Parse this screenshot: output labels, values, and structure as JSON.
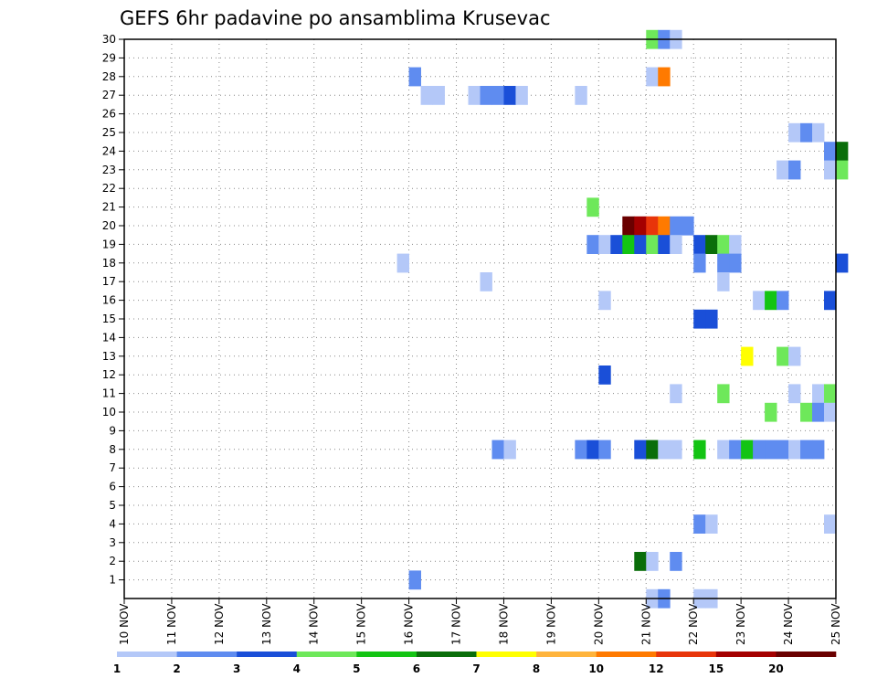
{
  "chart_data": {
    "type": "heatmap",
    "title": "GEFS 6hr padavine po ansamblima Krusevac",
    "xlabel": "",
    "ylabel": "",
    "x_tick_labels": [
      "10 NOV",
      "11 NOV",
      "12 NOV",
      "13 NOV",
      "14 NOV",
      "15 NOV",
      "16 NOV",
      "17 NOV",
      "18 NOV",
      "19 NOV",
      "20 NOV",
      "21 NOV",
      "22 NOV",
      "23 NOV",
      "24 NOV",
      "25 NOV"
    ],
    "y_tick_labels": [
      "1",
      "2",
      "3",
      "4",
      "5",
      "6",
      "7",
      "8",
      "9",
      "10",
      "11",
      "12",
      "13",
      "14",
      "15",
      "16",
      "17",
      "18",
      "19",
      "20",
      "21",
      "22",
      "23",
      "24",
      "25",
      "26",
      "27",
      "28",
      "29",
      "30"
    ],
    "x_range_days": [
      10,
      25
    ],
    "steps_per_day": 4,
    "members": 30,
    "grid": true,
    "legend_placement": "bottom",
    "legend": {
      "labels": [
        "1",
        "2",
        "3",
        "4",
        "5",
        "6",
        "7",
        "8",
        "10",
        "12",
        "15",
        "20"
      ],
      "colors": [
        "#b4c8f8",
        "#5f8cf0",
        "#1a4fd8",
        "#6ee85a",
        "#13c413",
        "#0a6e0a",
        "#ffff00",
        "#ffb43c",
        "#ff7a00",
        "#e8350a",
        "#a40000",
        "#6a0000"
      ]
    },
    "cells_note": "each cell: [day, hour, member, legend_class_index]",
    "cells": [
      [
        21,
        0,
        30,
        3
      ],
      [
        21,
        6,
        30,
        1
      ],
      [
        21,
        12,
        30,
        0
      ],
      [
        16,
        0,
        28,
        1
      ],
      [
        21,
        0,
        28,
        0
      ],
      [
        21,
        6,
        28,
        8
      ],
      [
        16,
        6,
        27,
        0
      ],
      [
        16,
        12,
        27,
        0
      ],
      [
        17,
        6,
        27,
        0
      ],
      [
        17,
        12,
        27,
        1
      ],
      [
        17,
        18,
        27,
        1
      ],
      [
        18,
        0,
        27,
        2
      ],
      [
        18,
        6,
        27,
        0
      ],
      [
        19,
        12,
        27,
        0
      ],
      [
        24,
        0,
        25,
        0
      ],
      [
        24,
        6,
        25,
        1
      ],
      [
        24,
        12,
        25,
        0
      ],
      [
        24,
        18,
        24,
        1
      ],
      [
        25,
        0,
        24,
        5
      ],
      [
        23,
        18,
        23,
        0
      ],
      [
        24,
        0,
        23,
        1
      ],
      [
        24,
        18,
        23,
        0
      ],
      [
        25,
        0,
        23,
        3
      ],
      [
        19,
        18,
        21,
        3
      ],
      [
        20,
        12,
        20,
        11
      ],
      [
        20,
        18,
        20,
        10
      ],
      [
        21,
        0,
        20,
        9
      ],
      [
        21,
        6,
        20,
        8
      ],
      [
        21,
        12,
        20,
        1
      ],
      [
        21,
        18,
        20,
        1
      ],
      [
        19,
        18,
        19,
        1
      ],
      [
        20,
        0,
        19,
        0
      ],
      [
        20,
        6,
        19,
        2
      ],
      [
        20,
        12,
        19,
        4
      ],
      [
        20,
        18,
        19,
        2
      ],
      [
        21,
        0,
        19,
        3
      ],
      [
        21,
        6,
        19,
        2
      ],
      [
        21,
        12,
        19,
        0
      ],
      [
        22,
        0,
        19,
        2
      ],
      [
        22,
        6,
        19,
        5
      ],
      [
        22,
        12,
        19,
        3
      ],
      [
        22,
        18,
        19,
        0
      ],
      [
        15,
        18,
        18,
        0
      ],
      [
        22,
        0,
        18,
        1
      ],
      [
        22,
        12,
        18,
        1
      ],
      [
        22,
        18,
        18,
        1
      ],
      [
        25,
        0,
        18,
        2
      ],
      [
        17,
        12,
        17,
        0
      ],
      [
        22,
        12,
        17,
        0
      ],
      [
        20,
        0,
        16,
        0
      ],
      [
        23,
        6,
        16,
        0
      ],
      [
        23,
        12,
        16,
        4
      ],
      [
        23,
        18,
        16,
        1
      ],
      [
        24,
        18,
        16,
        2
      ],
      [
        22,
        0,
        15,
        2
      ],
      [
        22,
        6,
        15,
        2
      ],
      [
        23,
        0,
        13,
        6
      ],
      [
        23,
        18,
        13,
        3
      ],
      [
        24,
        0,
        13,
        0
      ],
      [
        20,
        0,
        12,
        2
      ],
      [
        21,
        12,
        11,
        0
      ],
      [
        22,
        12,
        11,
        3
      ],
      [
        24,
        0,
        11,
        0
      ],
      [
        24,
        12,
        11,
        0
      ],
      [
        24,
        18,
        11,
        3
      ],
      [
        23,
        12,
        10,
        3
      ],
      [
        24,
        6,
        10,
        3
      ],
      [
        24,
        12,
        10,
        1
      ],
      [
        24,
        18,
        10,
        0
      ],
      [
        17,
        18,
        8,
        1
      ],
      [
        18,
        0,
        8,
        0
      ],
      [
        19,
        12,
        8,
        1
      ],
      [
        19,
        18,
        8,
        2
      ],
      [
        20,
        0,
        8,
        1
      ],
      [
        20,
        18,
        8,
        2
      ],
      [
        21,
        0,
        8,
        5
      ],
      [
        21,
        6,
        8,
        0
      ],
      [
        21,
        12,
        8,
        0
      ],
      [
        22,
        0,
        8,
        4
      ],
      [
        22,
        12,
        8,
        0
      ],
      [
        22,
        18,
        8,
        1
      ],
      [
        23,
        0,
        8,
        4
      ],
      [
        23,
        6,
        8,
        1
      ],
      [
        23,
        12,
        8,
        1
      ],
      [
        23,
        18,
        8,
        1
      ],
      [
        24,
        0,
        8,
        0
      ],
      [
        24,
        6,
        8,
        1
      ],
      [
        24,
        12,
        8,
        1
      ],
      [
        22,
        0,
        4,
        1
      ],
      [
        22,
        6,
        4,
        0
      ],
      [
        24,
        18,
        4,
        0
      ],
      [
        20,
        18,
        2,
        5
      ],
      [
        21,
        0,
        2,
        0
      ],
      [
        21,
        12,
        2,
        1
      ],
      [
        16,
        0,
        1,
        1
      ],
      [
        21,
        0,
        0,
        0
      ],
      [
        21,
        6,
        0,
        1
      ],
      [
        22,
        0,
        0,
        0
      ],
      [
        22,
        6,
        0,
        0
      ]
    ]
  }
}
